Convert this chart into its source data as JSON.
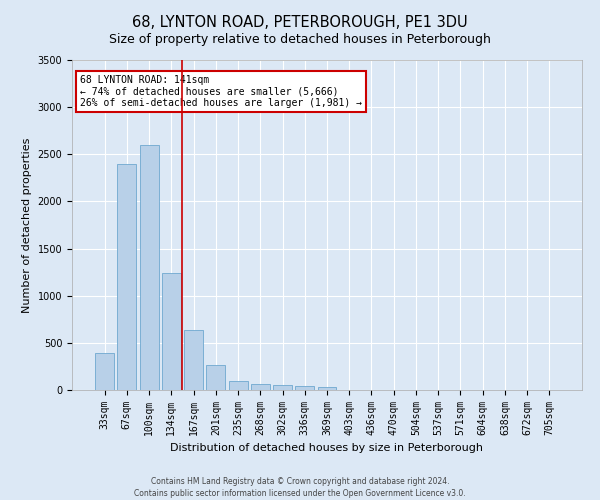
{
  "title": "68, LYNTON ROAD, PETERBOROUGH, PE1 3DU",
  "subtitle": "Size of property relative to detached houses in Peterborough",
  "xlabel": "Distribution of detached houses by size in Peterborough",
  "ylabel": "Number of detached properties",
  "categories": [
    "33sqm",
    "67sqm",
    "100sqm",
    "134sqm",
    "167sqm",
    "201sqm",
    "235sqm",
    "268sqm",
    "302sqm",
    "336sqm",
    "369sqm",
    "403sqm",
    "436sqm",
    "470sqm",
    "504sqm",
    "537sqm",
    "571sqm",
    "604sqm",
    "638sqm",
    "672sqm",
    "705sqm"
  ],
  "values": [
    390,
    2400,
    2600,
    1240,
    640,
    260,
    100,
    60,
    55,
    45,
    30,
    0,
    0,
    0,
    0,
    0,
    0,
    0,
    0,
    0,
    0
  ],
  "bar_color": "#b8d0e8",
  "bar_edge_color": "#6fa8d0",
  "red_line_x": 3.5,
  "annotation_text": "68 LYNTON ROAD: 141sqm\n← 74% of detached houses are smaller (5,666)\n26% of semi-detached houses are larger (1,981) →",
  "annotation_box_color": "#ffffff",
  "annotation_box_edge": "#cc0000",
  "red_line_color": "#cc0000",
  "ylim": [
    0,
    3500
  ],
  "yticks": [
    0,
    500,
    1000,
    1500,
    2000,
    2500,
    3000,
    3500
  ],
  "footer_line1": "Contains HM Land Registry data © Crown copyright and database right 2024.",
  "footer_line2": "Contains public sector information licensed under the Open Government Licence v3.0.",
  "background_color": "#dce8f5",
  "plot_background": "#dce8f5",
  "grid_color": "#ffffff",
  "title_fontsize": 10.5,
  "subtitle_fontsize": 9,
  "axis_label_fontsize": 8,
  "tick_fontsize": 7,
  "footer_fontsize": 5.5,
  "annot_fontsize": 7
}
